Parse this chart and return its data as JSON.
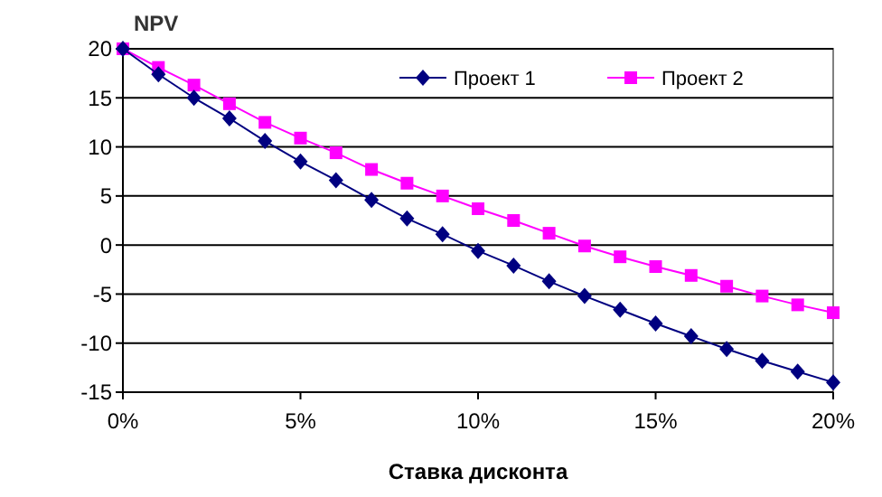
{
  "chart_data": {
    "type": "line",
    "ylabel": "NPV",
    "xlabel": "Ставка дисконта",
    "x": [
      0,
      1,
      2,
      3,
      4,
      5,
      6,
      7,
      8,
      9,
      10,
      11,
      12,
      13,
      14,
      15,
      16,
      17,
      18,
      19,
      20
    ],
    "series": [
      {
        "name": "Проект 1",
        "color": "#000080",
        "marker": "diamond",
        "values": [
          20,
          17.4,
          15,
          12.9,
          10.6,
          8.5,
          6.6,
          4.6,
          2.7,
          1.1,
          -0.6,
          -2.1,
          -3.7,
          -5.2,
          -6.6,
          -8,
          -9.3,
          -10.6,
          -11.8,
          -12.9,
          -14
        ]
      },
      {
        "name": "Проект 2",
        "color": "#ff00ff",
        "marker": "square",
        "values": [
          20,
          18.1,
          16.3,
          14.4,
          12.5,
          10.9,
          9.4,
          7.7,
          6.3,
          5,
          3.7,
          2.5,
          1.2,
          -0.1,
          -1.2,
          -2.2,
          -3.1,
          -4.2,
          -5.2,
          -6.1,
          -6.9
        ]
      }
    ],
    "xlim": [
      0,
      20
    ],
    "xticks": [
      {
        "value": 0,
        "label": "0%"
      },
      {
        "value": 5,
        "label": "5%"
      },
      {
        "value": 10,
        "label": "10%"
      },
      {
        "value": 15,
        "label": "15%"
      },
      {
        "value": 20,
        "label": "20%"
      }
    ],
    "ylim": [
      -15,
      20
    ],
    "yticks": [
      -15,
      -10,
      -5,
      0,
      5,
      10,
      15,
      20
    ],
    "grid": "y",
    "legend": "top right"
  }
}
